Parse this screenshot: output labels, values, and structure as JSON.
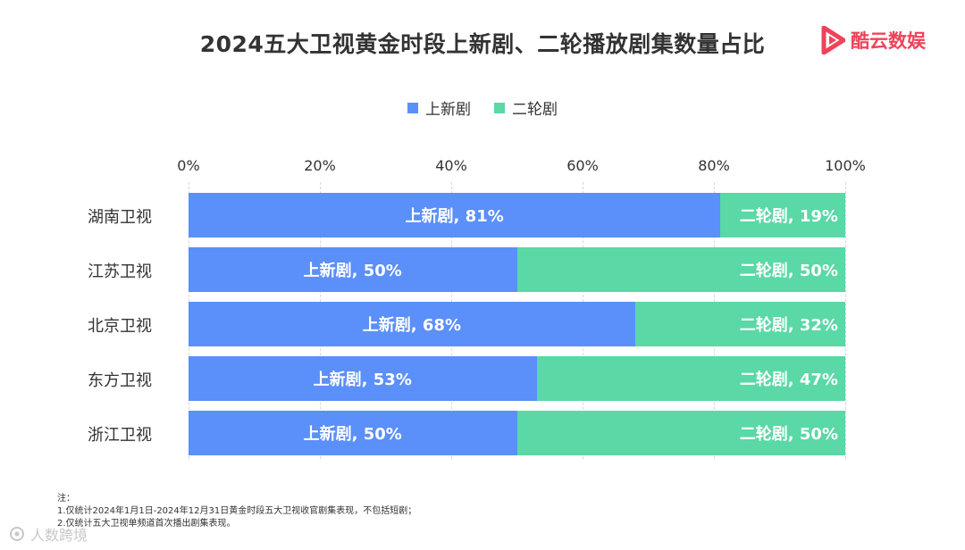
{
  "header": {
    "title": "2024五大卫视黄金时段上新剧、二轮播放剧集数量占比"
  },
  "brand": {
    "name": "酷云数娱",
    "icon": "play-triangle-logo",
    "color": "#f0425a"
  },
  "colors": {
    "new": "#5b8ff9",
    "rerun": "#5ad8a6"
  },
  "chart_data": {
    "type": "bar",
    "orientation": "horizontal",
    "stacked": true,
    "title": "2024五大卫视黄金时段上新剧、二轮播放剧集数量占比",
    "categories": [
      "湖南卫视",
      "江苏卫视",
      "北京卫视",
      "东方卫视",
      "浙江卫视"
    ],
    "series": [
      {
        "name": "上新剧",
        "values": [
          81,
          50,
          68,
          53,
          50
        ]
      },
      {
        "name": "二轮剧",
        "values": [
          19,
          50,
          32,
          47,
          50
        ]
      }
    ],
    "xlim": [
      0,
      100
    ],
    "x_ticks": [
      "0%",
      "20%",
      "40%",
      "60%",
      "80%",
      "100%"
    ],
    "legend": "top-center",
    "grid": true,
    "data_label_format": "{series}, {value}%"
  },
  "footnote": {
    "heading": "注：",
    "lines": [
      "1.仅统计2024年1月1日-2024年12月31日黄金时段五大卫视收官剧集表现，不包括短剧；",
      "2.仅统计五大卫视单频道首次播出剧集表现。"
    ]
  },
  "watermark": {
    "text": "人数跨境"
  }
}
